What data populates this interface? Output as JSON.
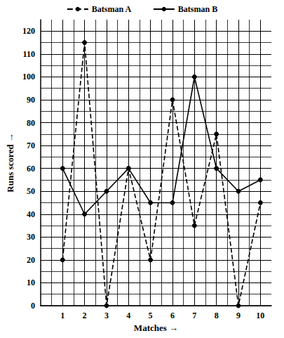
{
  "chart_data": {
    "type": "line",
    "x_label": "Matches →",
    "y_label": "Runs scored →",
    "x": [
      1,
      2,
      3,
      4,
      5,
      6,
      7,
      8,
      9,
      10
    ],
    "series": [
      {
        "name": "Batsman A",
        "color": "#000000",
        "line_style": "dashed",
        "marker": "circle",
        "values": [
          20,
          115,
          0,
          60,
          20,
          90,
          35,
          75,
          0,
          45
        ]
      },
      {
        "name": "Batsman B",
        "color": "#000000",
        "line_style": "solid",
        "marker": "circle",
        "values": [
          60,
          40,
          50,
          60,
          45,
          45,
          100,
          60,
          50,
          55
        ]
      }
    ],
    "xlim": [
      0,
      10.5
    ],
    "xticks": [
      1,
      2,
      3,
      4,
      5,
      6,
      7,
      8,
      9,
      10
    ],
    "ylim": [
      0,
      125
    ],
    "yticks": [
      0,
      10,
      20,
      30,
      40,
      50,
      60,
      70,
      80,
      90,
      100,
      110,
      120
    ],
    "grid": true,
    "legend": "top"
  }
}
